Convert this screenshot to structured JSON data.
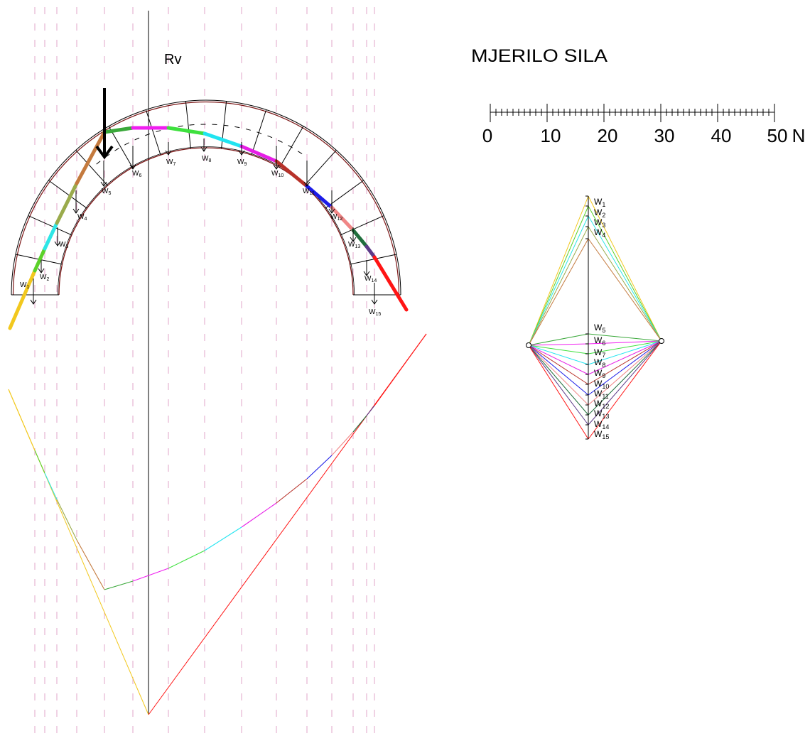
{
  "labels": {
    "scale_title": "MJERILO SILA",
    "resultant": "Rv",
    "load_letter": "W"
  },
  "scale": {
    "tick_labels": [
      "0",
      "10",
      "20",
      "30",
      "40",
      "50"
    ],
    "unit": "N",
    "range": [
      0,
      50
    ],
    "major_step": 10,
    "minor_step": 1
  },
  "loads": [
    "1",
    "2",
    "3",
    "4",
    "5",
    "6",
    "7",
    "8",
    "9",
    "10",
    "11",
    "12",
    "13",
    "14",
    "15"
  ],
  "colors": {
    "segments": [
      "#f2c81e",
      "#5cd12a",
      "#2ee6e6",
      "#9aab4c",
      "#c47a3e",
      "#3aa83a",
      "#f01ef0",
      "#3ee03e",
      "#20e4f0",
      "#e61ee6",
      "#b8322a",
      "#1c1ce8",
      "#f08686",
      "#1f6e3c",
      "#5c3a88",
      "#ff1414"
    ],
    "arch_edge": "#7a1414",
    "load_lines": "#e2a4c8",
    "ink": "#000000"
  }
}
